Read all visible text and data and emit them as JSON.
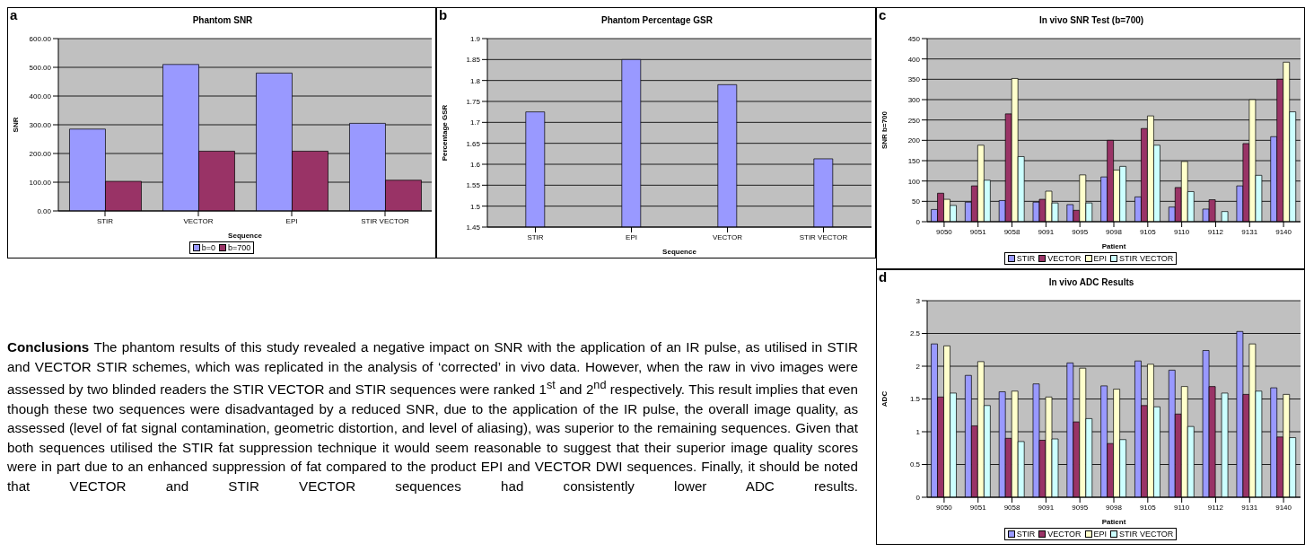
{
  "chart_data": [
    {
      "type": "bar",
      "title": "Phantom SNR",
      "annotations": [
        "a"
      ],
      "xlabel": "Sequence",
      "ylabel": "SNR",
      "categories": [
        "STIR",
        "VECTOR",
        "EPI",
        "STIR VECTOR"
      ],
      "series": [
        {
          "name": "b=0",
          "color": "#9999ff",
          "values": [
            285,
            510,
            480,
            305
          ]
        },
        {
          "name": "b=700",
          "color": "#993366",
          "values": [
            103,
            208,
            208,
            107
          ]
        }
      ],
      "ylim": [
        0,
        600
      ],
      "yticks": [
        {
          "value": 0,
          "label": "0.00"
        },
        {
          "value": 100,
          "label": "100.00"
        },
        {
          "value": 200,
          "label": "200.00"
        },
        {
          "value": 300,
          "label": "300.00"
        },
        {
          "value": 400,
          "label": "400.00"
        },
        {
          "value": 500,
          "label": "500.00"
        },
        {
          "value": 600,
          "label": "600.00"
        }
      ],
      "grid": "y",
      "legend": "bottom"
    },
    {
      "type": "bar",
      "title": "Phantom Percentage GSR",
      "annotations": [
        "b"
      ],
      "xlabel": "Sequence",
      "ylabel": "Percentage GSR",
      "categories": [
        "STIR",
        "EPI",
        "VECTOR",
        "STIR VECTOR"
      ],
      "values": [
        1.725,
        1.85,
        1.79,
        1.613
      ],
      "color": "#9999ff",
      "ylim": [
        1.45,
        1.9
      ],
      "yticks": [
        1.45,
        1.5,
        1.55,
        1.6,
        1.65,
        1.7,
        1.75,
        1.8,
        1.85,
        1.9
      ],
      "grid": "y"
    },
    {
      "type": "bar",
      "title": "In vivo SNR Test (b=700)",
      "annotations": [
        "c"
      ],
      "xlabel": "Patient",
      "ylabel": "SNR b=700",
      "categories": [
        "9050",
        "9051",
        "9058",
        "9091",
        "9095",
        "9098",
        "9105",
        "9110",
        "9112",
        "9131",
        "9140"
      ],
      "series": [
        {
          "name": "STIR",
          "color": "#9999ff",
          "values": [
            30,
            48,
            52,
            48,
            42,
            110,
            61,
            36,
            31,
            88,
            209
          ]
        },
        {
          "name": "VECTOR",
          "color": "#993366",
          "values": [
            70,
            88,
            265,
            55,
            28,
            200,
            229,
            84,
            54,
            192,
            350
          ]
        },
        {
          "name": "EPI",
          "color": "#ffffcc",
          "values": [
            55,
            188,
            352,
            75,
            115,
            127,
            260,
            148,
            null,
            300,
            392
          ]
        },
        {
          "name": "STIR VECTOR",
          "color": "#ccffff",
          "values": [
            40,
            102,
            160,
            46,
            46,
            136,
            188,
            74,
            25,
            114,
            270
          ]
        }
      ],
      "ylim": [
        0,
        450
      ],
      "yticks": [
        0,
        50,
        100,
        150,
        200,
        250,
        300,
        350,
        400,
        450
      ],
      "grid": "y",
      "legend": "bottom"
    },
    {
      "type": "bar",
      "title": "In vivo ADC Results",
      "annotations": [
        "d"
      ],
      "xlabel": "Patient",
      "ylabel": "ADC",
      "categories": [
        "9050",
        "9051",
        "9058",
        "9091",
        "9095",
        "9098",
        "9105",
        "9110",
        "9112",
        "9131",
        "9140"
      ],
      "series": [
        {
          "name": "STIR",
          "color": "#9999ff",
          "values": [
            2.34,
            1.86,
            1.61,
            1.73,
            2.05,
            1.7,
            2.08,
            1.94,
            2.24,
            2.53,
            1.67
          ]
        },
        {
          "name": "VECTOR",
          "color": "#993366",
          "values": [
            1.53,
            1.09,
            0.9,
            0.87,
            1.15,
            0.82,
            1.4,
            1.27,
            1.69,
            1.57,
            0.92
          ]
        },
        {
          "name": "EPI",
          "color": "#ffffcc",
          "values": [
            2.31,
            2.07,
            1.62,
            1.53,
            1.97,
            1.65,
            2.03,
            1.69,
            null,
            2.34,
            1.57
          ]
        },
        {
          "name": "STIR VECTOR",
          "color": "#ccffff",
          "values": [
            1.59,
            1.4,
            0.85,
            0.89,
            1.2,
            0.88,
            1.38,
            1.08,
            1.59,
            1.62,
            0.91
          ]
        }
      ],
      "ylim": [
        0,
        3
      ],
      "yticks": [
        0,
        0.5,
        1,
        1.5,
        2,
        2.5,
        3
      ],
      "grid": "y",
      "legend": "bottom"
    },
    {
      "type": "other",
      "title": "Conclusions",
      "annotations": [
        "The phantom results of this study revealed a negative impact on SNR with the application of an IR pulse, as utilised in STIR and VECTOR STIR schemes, which was replicated in the analysis of ‘corrected’ in vivo data. However, when the raw in vivo images were assessed by two blinded readers the STIR VECTOR and STIR sequences were ranked 1$^{st}$ and 2$^{nd}$ respectively. This result implies that even though these two sequences were disadvantaged by a reduced SNR, due to the application of the IR pulse, the overall image quality, as assessed (level of fat signal contamination, geometric distortion, and level of aliasing), was superior to the remaining sequences. Given that both sequences utilised the STIR fat suppression technique it would seem reasonable to suggest that their superior image quality scores were in part due to an enhanced suppression of fat compared to the product EPI and VECTOR DWI sequences. Finally, it should be noted that VECTOR and STIR VECTOR sequences had consistently lower ADC results."
      ]
    }
  ]
}
